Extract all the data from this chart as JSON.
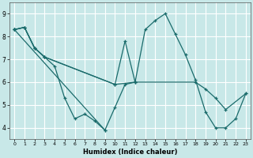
{
  "xlabel": "Humidex (Indice chaleur)",
  "bg_color": "#c8e8e8",
  "grid_color": "#ffffff",
  "line_color": "#1a6b6b",
  "xlim": [
    -0.5,
    23.5
  ],
  "ylim": [
    3.5,
    9.5
  ],
  "xticks": [
    0,
    1,
    2,
    3,
    4,
    5,
    6,
    7,
    8,
    9,
    10,
    11,
    12,
    13,
    14,
    15,
    16,
    17,
    18,
    19,
    20,
    21,
    22,
    23
  ],
  "yticks": [
    4,
    5,
    6,
    7,
    8,
    9
  ],
  "lines": [
    {
      "x": [
        0,
        1,
        2,
        3,
        4,
        5,
        6,
        7,
        8,
        9,
        10,
        11,
        12
      ],
      "y": [
        8.3,
        8.4,
        7.5,
        7.1,
        6.7,
        5.3,
        4.4,
        4.6,
        4.3,
        3.9,
        4.9,
        5.9,
        6.0
      ]
    },
    {
      "x": [
        0,
        9
      ],
      "y": [
        8.3,
        3.9
      ]
    },
    {
      "x": [
        0,
        1,
        2,
        3,
        10,
        11,
        12,
        13,
        14,
        15,
        16,
        17,
        18,
        19,
        20,
        21,
        22,
        23
      ],
      "y": [
        8.3,
        8.4,
        7.5,
        7.1,
        5.9,
        7.8,
        6.0,
        8.3,
        8.7,
        9.0,
        8.1,
        7.2,
        6.1,
        4.7,
        4.0,
        4.0,
        4.4,
        5.5
      ]
    },
    {
      "x": [
        0,
        1,
        2,
        3,
        10,
        12,
        18,
        19,
        20,
        21,
        23
      ],
      "y": [
        8.3,
        8.4,
        7.5,
        7.1,
        5.9,
        6.0,
        6.0,
        5.7,
        5.3,
        4.8,
        5.5
      ]
    }
  ]
}
